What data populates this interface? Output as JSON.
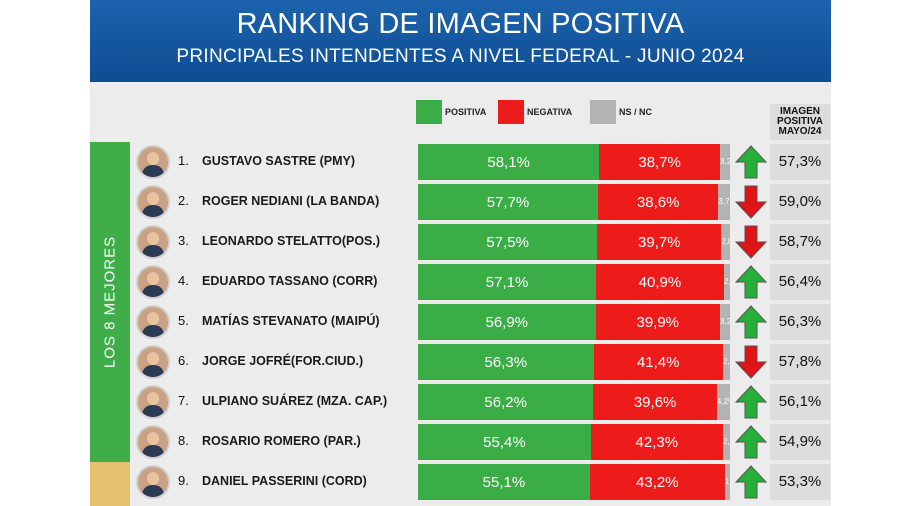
{
  "title": "RANKING DE IMAGEN POSITIVA",
  "subtitle": "PRINCIPALES INTENDENTES A NIVEL FEDERAL - JUNIO 2024",
  "legend": [
    {
      "label": "POSITIVA",
      "color": "#3aad46"
    },
    {
      "label": "NEGATIVA",
      "color": "#ee1b1b"
    },
    {
      "label": "NS / NC",
      "color": "#b3b3b3"
    }
  ],
  "prev_header": [
    "IMAGEN",
    "POSITIVA",
    "MAYO/24"
  ],
  "group_label": "LOS 8 MEJORES",
  "chart_data": {
    "type": "bar",
    "title": "RANKING DE IMAGEN POSITIVA",
    "subtitle": "PRINCIPALES INTENDENTES A NIVEL FEDERAL - JUNIO 2024",
    "stacked": true,
    "orientation": "horizontal",
    "categories": [
      "GUSTAVO SASTRE (PMY)",
      "ROGER NEDIANI (LA BANDA)",
      "LEONARDO STELATTO(POS.)",
      "EDUARDO TASSANO (CORR)",
      "MATÍAS STEVANATO (MAIPÚ)",
      "JORGE JOFRÉ(FOR.CIUD.)",
      "ULPIANO SUÁREZ (MZA. CAP.)",
      "ROSARIO ROMERO (PAR.)",
      "DANIEL PASSERINI (CORD)"
    ],
    "series": [
      {
        "name": "POSITIVA",
        "values": [
          58.1,
          57.7,
          57.5,
          57.1,
          56.9,
          56.3,
          56.2,
          55.4,
          55.1
        ]
      },
      {
        "name": "NEGATIVA",
        "values": [
          38.7,
          38.6,
          39.7,
          40.9,
          39.9,
          41.4,
          39.6,
          42.3,
          43.2
        ]
      },
      {
        "name": "NS / NC",
        "values": [
          3.2,
          3.7,
          2.8,
          2.0,
          3.2,
          2.3,
          4.2,
          2.3,
          1.7
        ]
      }
    ],
    "rows": [
      {
        "rank": "1.",
        "name": "GUSTAVO SASTRE (PMY)",
        "pos": 58.1,
        "pos_label": "58,1%",
        "neg": 38.7,
        "neg_label": "38,7%",
        "ns": 3.2,
        "ns_label": "3,2%",
        "trend": "up",
        "prev": 57.3,
        "prev_label": "57,3%"
      },
      {
        "rank": "2.",
        "name": "ROGER NEDIANI (LA BANDA)",
        "pos": 57.7,
        "pos_label": "57,7%",
        "neg": 38.6,
        "neg_label": "38,6%",
        "ns": 3.7,
        "ns_label": "3,7%",
        "trend": "down",
        "prev": 59.0,
        "prev_label": "59,0%"
      },
      {
        "rank": "3.",
        "name": "LEONARDO STELATTO(POS.)",
        "pos": 57.5,
        "pos_label": "57,5%",
        "neg": 39.7,
        "neg_label": "39,7%",
        "ns": 2.8,
        "ns_label": "2,8%",
        "trend": "down",
        "prev": 58.7,
        "prev_label": "58,7%"
      },
      {
        "rank": "4.",
        "name": "EDUARDO TASSANO (CORR)",
        "pos": 57.1,
        "pos_label": "57,1%",
        "neg": 40.9,
        "neg_label": "40,9%",
        "ns": 2.0,
        "ns_label": "2,0%",
        "trend": "up",
        "prev": 56.4,
        "prev_label": "56,4%"
      },
      {
        "rank": "5.",
        "name": "MATÍAS STEVANATO (MAIPÚ)",
        "pos": 56.9,
        "pos_label": "56,9%",
        "neg": 39.9,
        "neg_label": "39,9%",
        "ns": 3.2,
        "ns_label": "3,2%",
        "trend": "up",
        "prev": 56.3,
        "prev_label": "56,3%"
      },
      {
        "rank": "6.",
        "name": "JORGE JOFRÉ(FOR.CIUD.)",
        "pos": 56.3,
        "pos_label": "56,3%",
        "neg": 41.4,
        "neg_label": "41,4%",
        "ns": 2.3,
        "ns_label": "2,3%",
        "trend": "down",
        "prev": 57.8,
        "prev_label": "57,8%"
      },
      {
        "rank": "7.",
        "name": "ULPIANO SUÁREZ (MZA. CAP.)",
        "pos": 56.2,
        "pos_label": "56,2%",
        "neg": 39.6,
        "neg_label": "39,6%",
        "ns": 4.2,
        "ns_label": "4,2%",
        "trend": "up",
        "prev": 56.1,
        "prev_label": "56,1%"
      },
      {
        "rank": "8.",
        "name": "ROSARIO ROMERO (PAR.)",
        "pos": 55.4,
        "pos_label": "55,4%",
        "neg": 42.3,
        "neg_label": "42,3%",
        "ns": 2.3,
        "ns_label": "2,3%",
        "trend": "up",
        "prev": 54.9,
        "prev_label": "54,9%"
      },
      {
        "rank": "9.",
        "name": "DANIEL PASSERINI (CORD)",
        "pos": 55.1,
        "pos_label": "55,1%",
        "neg": 43.2,
        "neg_label": "43,2%",
        "ns": 1.7,
        "ns_label": "1,7%",
        "trend": "up",
        "prev": 53.3,
        "prev_label": "53,3%"
      }
    ],
    "colors": {
      "positiva": "#3aad46",
      "negativa": "#ee1b1b",
      "nsnc": "#b3b3b3",
      "up": "#26b03a",
      "down": "#e01414",
      "best_group": "#3fae49",
      "next_group": "#e7c06e"
    },
    "xlim": [
      0,
      100
    ],
    "legend_position": "top",
    "grid": false
  }
}
